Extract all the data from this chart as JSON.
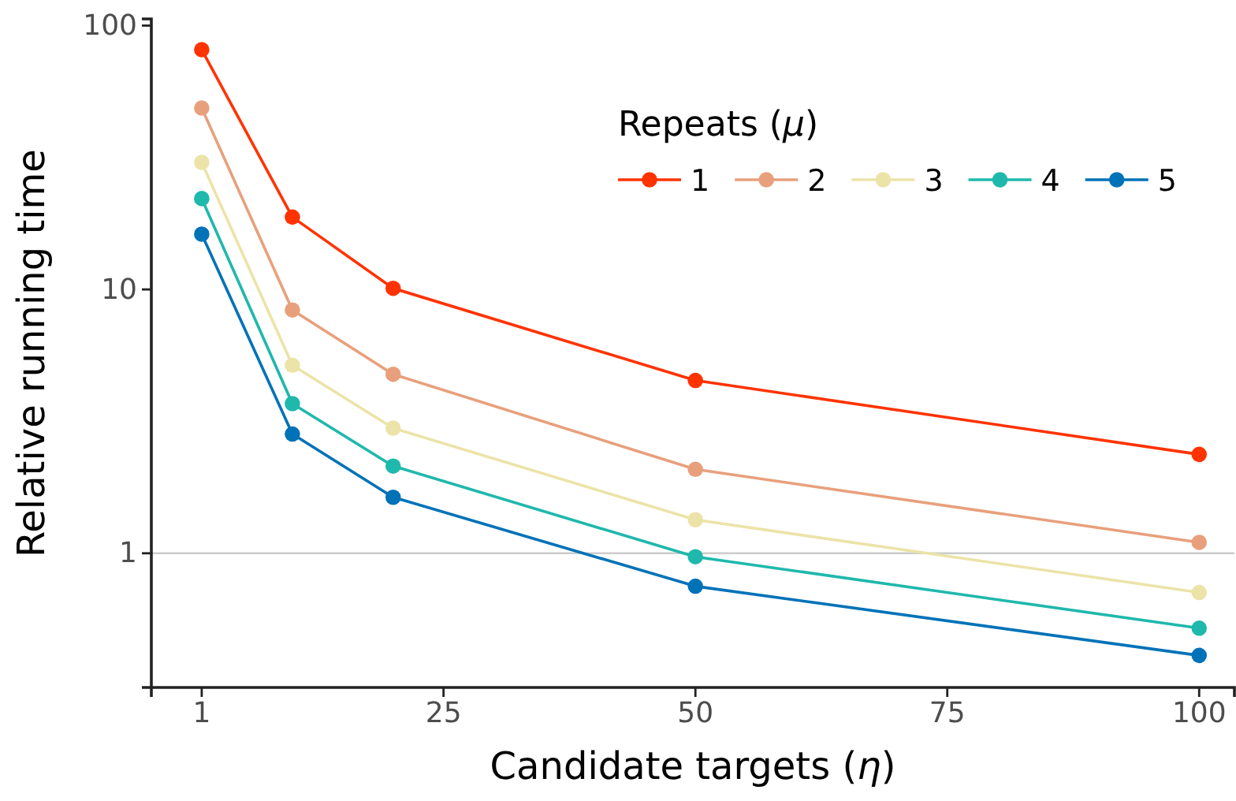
{
  "chart_data": {
    "type": "line",
    "xlabel": "Candidate targets (η)",
    "ylabel": "Relative running time",
    "legend_title": "Repeats (μ)",
    "legend": "top right",
    "log": "y",
    "marker": "circle",
    "line_style": "solid",
    "grid": false,
    "x": [
      1,
      10,
      20,
      50,
      100
    ],
    "xlim": [
      -4,
      103.5
    ],
    "xticks": [
      1,
      25,
      50,
      75,
      100
    ],
    "ylim": [
      0.31,
      106
    ],
    "yticks": [
      1,
      10,
      100
    ],
    "ref_lines": [
      {
        "axis": "y",
        "value": 1,
        "color": "#cccccc"
      }
    ],
    "series": [
      {
        "name": "1",
        "color": "#ff3300",
        "values": [
          81,
          18.8,
          10.1,
          4.52,
          2.37
        ]
      },
      {
        "name": "2",
        "color": "#e8a07c",
        "values": [
          48.7,
          8.36,
          4.77,
          2.08,
          1.1
        ]
      },
      {
        "name": "3",
        "color": "#ece3a8",
        "values": [
          30.3,
          5.16,
          2.98,
          1.34,
          0.71
        ]
      },
      {
        "name": "4",
        "color": "#1fb8ac",
        "values": [
          22.1,
          3.69,
          2.14,
          0.97,
          0.52
        ]
      },
      {
        "name": "5",
        "color": "#0072b8",
        "values": [
          16.2,
          2.83,
          1.63,
          0.75,
          0.41
        ]
      }
    ]
  }
}
